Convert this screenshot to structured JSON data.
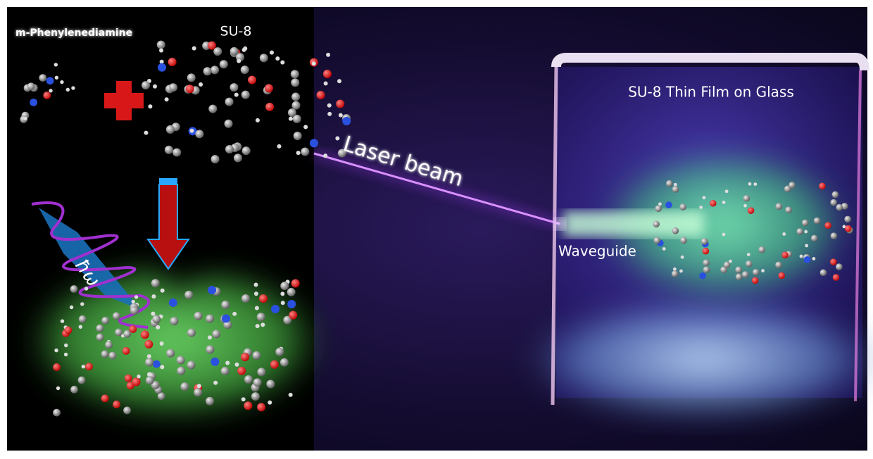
{
  "left_panel": {
    "reactant_1": "m-Phenylenediamine",
    "reactant_2": "SU-8",
    "photon": "ħω"
  },
  "right_panel": {
    "beam_label": "Laser beam",
    "film_label": "SU-8 Thin Film on Glass",
    "waveguide_label": "Waveguide"
  }
}
